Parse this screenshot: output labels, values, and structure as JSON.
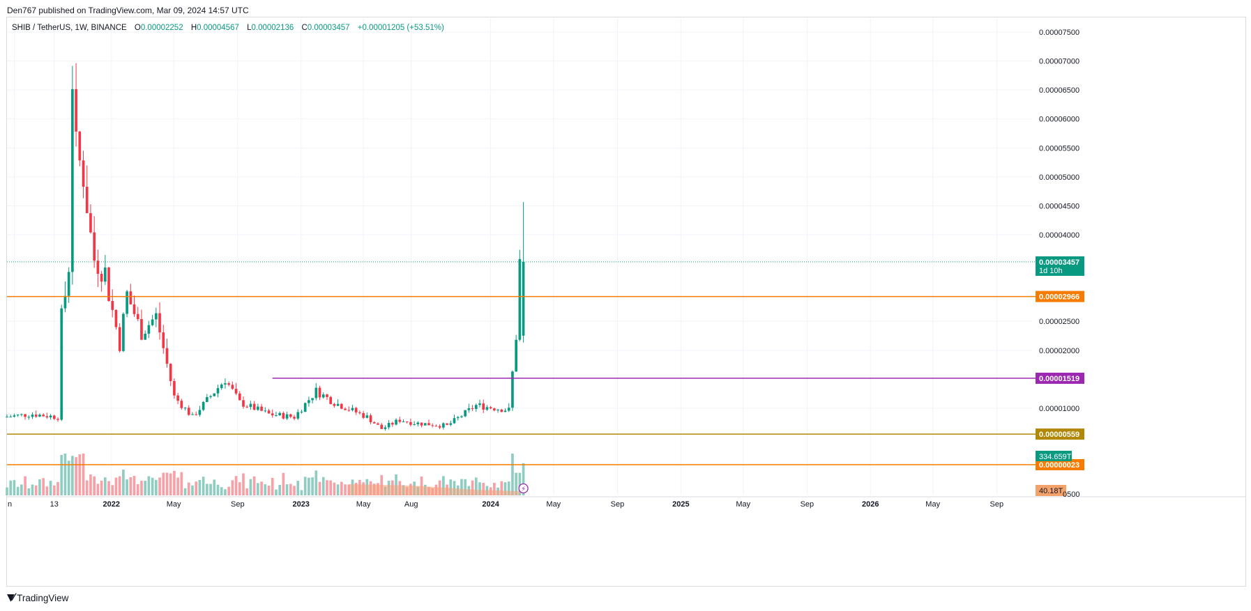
{
  "header": {
    "published_line": "Den767 published on TradingView.com, Mar 09, 2024 14:57 UTC"
  },
  "legend": {
    "symbol": "SHIB / TetherUS, 1W, BINANCE",
    "open_label": "O",
    "open": "0.00002252",
    "high_label": "H",
    "high": "0.00004567",
    "low_label": "L",
    "low": "0.00002136",
    "close_label": "C",
    "close": "0.00003457",
    "change": "+0.00001205 (+53.51%)"
  },
  "footer": {
    "brand": "TradingView",
    "logo_icon": "tradingview-logo-icon"
  },
  "colors": {
    "up": "#089981",
    "down": "#f23645",
    "vol_up": "#8fccc2",
    "vol_down": "#f7a1a7",
    "orange": "#f57c00",
    "purple": "#9c27b0",
    "dark_orange": "#b28704",
    "grid": "#f0f3fa",
    "price_tag": "#089981"
  },
  "chart_data": {
    "type": "candlestick",
    "timeframe": "1W",
    "y_axis": {
      "min": 3e-06,
      "max": 7.75e-05,
      "tick_labels": [
        "0.00007500",
        "0.00007000",
        "0.00006500",
        "0.00006000",
        "0.00005500",
        "0.00005000",
        "0.00004500",
        "0.00004000",
        "0.00002500",
        "0.00002000",
        "0.00001000"
      ],
      "tick_values": [
        7.5e-05,
        7e-05,
        6.5e-05,
        6e-05,
        5.5e-05,
        5e-05,
        4.5e-05,
        4e-05,
        2.5e-05,
        2e-05,
        1e-05
      ]
    },
    "x_axis": {
      "ticks": [
        {
          "label": "n",
          "date": "2021-06-28",
          "bold": false
        },
        {
          "label": "13",
          "date": "2021-09-13",
          "bold": false
        },
        {
          "label": "2022",
          "date": "2022-01-01",
          "bold": true
        },
        {
          "label": "May",
          "date": "2022-05-01",
          "bold": false
        },
        {
          "label": "Sep",
          "date": "2022-09-01",
          "bold": false
        },
        {
          "label": "2023",
          "date": "2023-01-01",
          "bold": true
        },
        {
          "label": "May",
          "date": "2023-05-01",
          "bold": false
        },
        {
          "label": "Aug",
          "date": "2023-08-01",
          "bold": false
        },
        {
          "label": "2024",
          "date": "2024-01-01",
          "bold": true
        },
        {
          "label": "May",
          "date": "2024-05-01",
          "bold": false
        },
        {
          "label": "Sep",
          "date": "2024-09-01",
          "bold": false
        },
        {
          "label": "2025",
          "date": "2025-01-01",
          "bold": true
        },
        {
          "label": "May",
          "date": "2025-05-01",
          "bold": false
        },
        {
          "label": "Sep",
          "date": "2025-09-01",
          "bold": false
        },
        {
          "label": "2026",
          "date": "2026-01-01",
          "bold": true
        },
        {
          "label": "May",
          "date": "2026-05-01",
          "bold": false
        },
        {
          "label": "Sep",
          "date": "2026-09-01",
          "bold": false
        }
      ]
    },
    "x_range": [
      "2021-06-14",
      "2026-11-08"
    ],
    "candles_anchor": [
      {
        "date": "2021-06-14",
        "close": 8.5e-06
      },
      {
        "date": "2021-08-09",
        "close": 9e-06
      },
      {
        "date": "2021-09-27",
        "close": 8.5e-06
      },
      {
        "date": "2021-10-04",
        "close": 2.6e-05
      },
      {
        "date": "2021-10-11",
        "close": 3e-05
      },
      {
        "date": "2021-10-18",
        "close": 3.4e-05
      },
      {
        "date": "2021-10-25",
        "close": 6.7e-05
      },
      {
        "date": "2021-11-01",
        "close": 5.5e-05
      },
      {
        "date": "2021-11-15",
        "close": 5e-05
      },
      {
        "date": "2021-12-06",
        "close": 3.5e-05
      },
      {
        "date": "2021-12-27",
        "close": 3.3e-05
      },
      {
        "date": "2022-01-24",
        "close": 2.1e-05
      },
      {
        "date": "2022-02-07",
        "close": 3e-05
      },
      {
        "date": "2022-03-07",
        "close": 2.3e-05
      },
      {
        "date": "2022-04-04",
        "close": 2.6e-05
      },
      {
        "date": "2022-05-09",
        "close": 1.2e-05
      },
      {
        "date": "2022-06-13",
        "close": 8.5e-06
      },
      {
        "date": "2022-08-15",
        "close": 1.5e-05
      },
      {
        "date": "2022-09-12",
        "close": 1.1e-05
      },
      {
        "date": "2022-11-07",
        "close": 9e-06
      },
      {
        "date": "2022-12-26",
        "close": 8.5e-06
      },
      {
        "date": "2023-02-06",
        "close": 1.3e-05
      },
      {
        "date": "2023-03-13",
        "close": 1.1e-05
      },
      {
        "date": "2023-05-15",
        "close": 8.5e-06
      },
      {
        "date": "2023-06-12",
        "close": 6.5e-06
      },
      {
        "date": "2023-07-17",
        "close": 8e-06
      },
      {
        "date": "2023-08-14",
        "close": 7.5e-06
      },
      {
        "date": "2023-10-16",
        "close": 7e-06
      },
      {
        "date": "2023-12-11",
        "close": 1.05e-05
      },
      {
        "date": "2024-02-12",
        "close": 9.7e-06
      },
      {
        "date": "2024-02-26",
        "close": 2.25e-05
      },
      {
        "date": "2024-03-04",
        "open": 2.252e-05,
        "high": 4.567e-05,
        "low": 2.136e-05,
        "close": 3.457e-05
      }
    ],
    "horizontal_lines": [
      {
        "value": 2.966e-05,
        "label": "0.00002966",
        "color": "#f57c00"
      },
      {
        "value": 1.519e-05,
        "label": "0.00001519",
        "color": "#9c27b0",
        "start_date": "2022-11-07"
      },
      {
        "value": 5.59e-06,
        "label": "0.00000559",
        "color": "#b28704"
      },
      {
        "value": 2.3e-07,
        "label": "0.00000023",
        "color": "#f57c00",
        "pane": "volume"
      }
    ],
    "last_price": {
      "value": 3.457e-05,
      "label": "0.00003457",
      "countdown": "1d 10h"
    },
    "volume_pane": {
      "last_volume_label": "334.659T",
      "ma_label": "40.18T",
      "axis_fragment": "0500"
    }
  }
}
